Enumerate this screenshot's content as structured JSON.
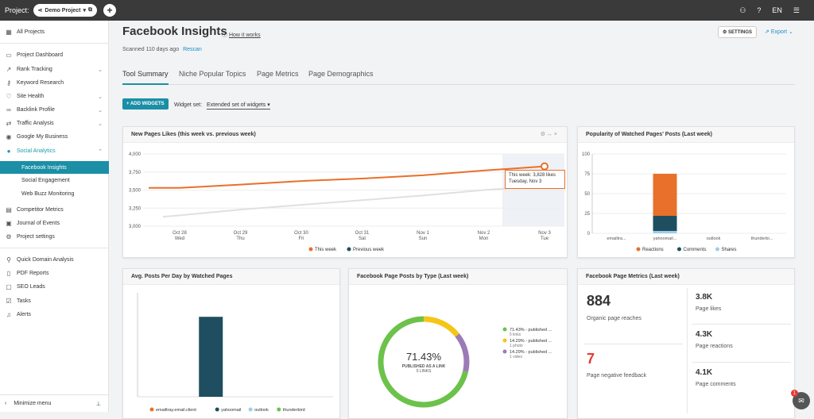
{
  "topbar": {
    "project_label": "Project:",
    "project_name": "Demo Project",
    "language": "EN"
  },
  "sidebar": {
    "items": [
      {
        "label": "All Projects",
        "icon": "grid-icon"
      },
      {
        "label": "Project Dashboard",
        "icon": "dashboard-icon"
      },
      {
        "label": "Rank Tracking",
        "icon": "chart-icon"
      },
      {
        "label": "Keyword Research",
        "icon": "key-icon"
      },
      {
        "label": "Site Health",
        "icon": "heart-pulse-icon"
      },
      {
        "label": "Backlink Profile",
        "icon": "link-icon"
      },
      {
        "label": "Traffic Analysis",
        "icon": "traffic-icon"
      },
      {
        "label": "Google My Business",
        "icon": "location-icon"
      },
      {
        "label": "Social Analytics",
        "icon": "social-icon"
      },
      {
        "label": "Facebook Insights"
      },
      {
        "label": "Social Engagement"
      },
      {
        "label": "Web Buzz Monitoring"
      },
      {
        "label": "Competitor Metrics",
        "icon": "competitor-icon"
      },
      {
        "label": "Journal of Events",
        "icon": "journal-icon"
      },
      {
        "label": "Project settings",
        "icon": "gear-icon"
      },
      {
        "label": "Quick Domain Analysis",
        "icon": "domain-icon"
      },
      {
        "label": "PDF Reports",
        "icon": "pdf-icon"
      },
      {
        "label": "SEO Leads",
        "icon": "leads-icon"
      },
      {
        "label": "Tasks",
        "icon": "tasks-icon"
      },
      {
        "label": "Alerts",
        "icon": "bell-icon"
      }
    ],
    "minimize_label": "Minimize menu"
  },
  "page": {
    "title": "Facebook Insights",
    "how_it_works": "How it works",
    "scanned": "Scanned 110 days ago",
    "rescan": "Rescan",
    "settings_label": "SETTINGS",
    "export_label": "Export",
    "tabs": [
      "Tool Summary",
      "Niche Popular Topics",
      "Page Metrics",
      "Page Demographics"
    ],
    "add_widgets": "+ ADD WIDGETS",
    "widget_set_label": "Widget set:",
    "widget_set_value": "Extended set of widgets"
  },
  "widgets": {
    "likes": {
      "title": "New Pages Likes (this week vs. previous week)",
      "tooltip_line1": "This week: 3,828 likes",
      "tooltip_line2": "Tuesday, Nov 3"
    },
    "popularity": {
      "title": "Popularity of Watched Pages' Posts (Last week)"
    },
    "avg_posts": {
      "title": "Avg. Posts Per Day by Watched Pages"
    },
    "by_type": {
      "title": "Facebook Page Posts by Type (Last week)"
    },
    "metrics": {
      "title": "Facebook Page Metrics (Last week)",
      "items": [
        {
          "value": "884",
          "label": "Organic page reaches"
        },
        {
          "value": "7",
          "label": "Page negative feedback"
        },
        {
          "value": "3.8K",
          "label": "Page likes"
        },
        {
          "value": "4.3K",
          "label": "Page reactions"
        },
        {
          "value": "4.1K",
          "label": "Page comments"
        }
      ]
    }
  },
  "chart_data": [
    {
      "type": "line",
      "title": "New Pages Likes (this week vs. previous week)",
      "x": [
        "Oct 28, Wed",
        "Oct 29, Thu",
        "Oct 30, Fri",
        "Oct 31, Sat",
        "Nov 1, Sun",
        "Nov 2, Mon",
        "Nov 3, Tue"
      ],
      "ylim": [
        3000,
        4000
      ],
      "yticks": [
        "4,000",
        "3,750",
        "3,500",
        "3,250",
        "3,000"
      ],
      "series": [
        {
          "name": "This week",
          "color": "#e8702a",
          "values": [
            3530,
            3575,
            3625,
            3660,
            3705,
            3770,
            3828
          ]
        },
        {
          "name": "Previous week",
          "color": "#1e4e5f",
          "values": [
            3150,
            3230,
            3295,
            3360,
            3425,
            3500,
            3560
          ]
        }
      ]
    },
    {
      "type": "bar",
      "title": "Popularity of Watched Pages' Posts (Last week)",
      "categories": [
        "emailtra...",
        "yahoomail...",
        "outlook",
        "thunderbi..."
      ],
      "ylim": [
        0,
        100
      ],
      "yticks": [
        "100",
        "75",
        "50",
        "25",
        "0"
      ],
      "stacked": true,
      "series": [
        {
          "name": "Reactions",
          "color": "#e8702a",
          "values": [
            0,
            53,
            0,
            0
          ]
        },
        {
          "name": "Comments",
          "color": "#1e4e5f",
          "values": [
            0,
            19,
            0,
            0
          ]
        },
        {
          "name": "Shares",
          "color": "#9fcde8",
          "values": [
            0,
            3,
            0,
            0
          ]
        }
      ]
    },
    {
      "type": "bar",
      "title": "Avg. Posts Per Day by Watched Pages",
      "categories": [
        "emailtray.email.client",
        "yahoomail",
        "outlook",
        "thunderbird"
      ],
      "colors": [
        "#e8702a",
        "#1e4e5f",
        "#9fcde8",
        "#6cc24a"
      ],
      "values": [
        0,
        1,
        0,
        0
      ]
    },
    {
      "type": "pie",
      "title": "Facebook Page Posts by Type (Last week)",
      "center_value": "71.43%",
      "center_line1": "PUBLISHED AS A LINK",
      "center_line2": "5 LINKS",
      "slices": [
        {
          "label": "71.43% - published ...",
          "sub": "5 links",
          "value": 71.43,
          "color": "#6cc24a"
        },
        {
          "label": "14.29% - published ...",
          "sub": "1 photo",
          "value": 14.29,
          "color": "#f5c518"
        },
        {
          "label": "14.29% - published ...",
          "sub": "1 video",
          "value": 14.29,
          "color": "#9b7bb5"
        }
      ]
    }
  ]
}
